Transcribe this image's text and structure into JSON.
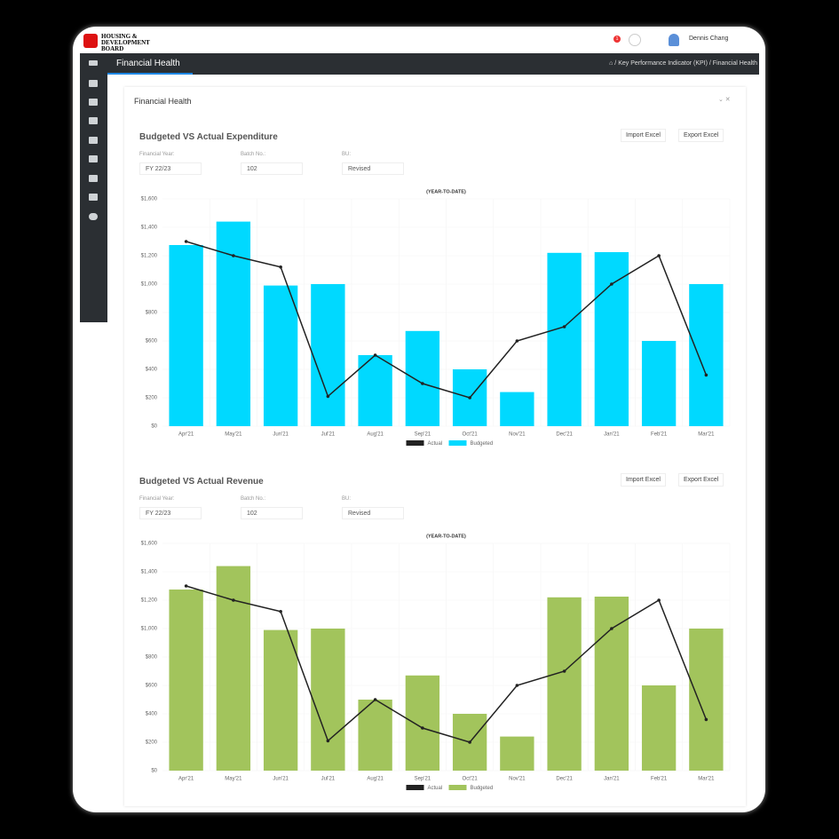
{
  "header": {
    "logo": "HOUSING & DEVELOPMENT BOARD",
    "badge": "1",
    "user": "Dennis Chang"
  },
  "nav": {
    "title": "Financial Health",
    "breadcrumb": [
      "Key Performance Indicator (KPI)",
      "Financial Health"
    ]
  },
  "panel": {
    "title": "Financial Health"
  },
  "sections": [
    {
      "import": "Import Excel",
      "export": "Export Excel",
      "filters": [
        {
          "label": "Financial Year:",
          "value": "FY 22/23"
        },
        {
          "label": "Batch No.:",
          "value": "102"
        },
        {
          "label": "BU:",
          "value": "Revised"
        }
      ]
    },
    {
      "import": "Import Excel",
      "export": "Export Excel",
      "filters": [
        {
          "label": "Financial Year:",
          "value": "FY 22/23"
        },
        {
          "label": "Batch No.:",
          "value": "102"
        },
        {
          "label": "BU:",
          "value": "Revised"
        }
      ]
    }
  ],
  "chart_data": [
    {
      "type": "bar",
      "title": "Budgeted VS Actual Expenditure",
      "subtitle": "(YEAR-TO-DATE)",
      "categories": [
        "Apr'21",
        "May'21",
        "Jun'21",
        "Jul'21",
        "Aug'21",
        "Sep'21",
        "Oct'21",
        "Nov'21",
        "Dec'21",
        "Jan'21",
        "Feb'21",
        "Mar'21"
      ],
      "series": [
        {
          "name": "Actual",
          "type": "line",
          "color": "#222222",
          "values": [
            1300,
            1200,
            1120,
            210,
            500,
            300,
            200,
            600,
            700,
            1000,
            1200,
            360
          ]
        },
        {
          "name": "Budgeted",
          "type": "bar",
          "color": "#00d9ff",
          "values": [
            1275,
            1440,
            990,
            1000,
            500,
            670,
            400,
            240,
            1220,
            1225,
            600,
            1000
          ]
        }
      ],
      "ylim": [
        0,
        1600
      ],
      "yticks": [
        {
          "value": 0,
          "label": "$0"
        },
        {
          "value": 200,
          "label": "$200"
        },
        {
          "value": 400,
          "label": "$400"
        },
        {
          "value": 600,
          "label": "$600"
        },
        {
          "value": 800,
          "label": "$800"
        },
        {
          "value": 1000,
          "label": "$1,000"
        },
        {
          "value": 1200,
          "label": "$1,200"
        },
        {
          "value": 1400,
          "label": "$1,400"
        },
        {
          "value": 1600,
          "label": "$1,600"
        }
      ],
      "grid": true,
      "legend": "bottom"
    },
    {
      "type": "bar",
      "title": "Budgeted VS Actual Revenue",
      "subtitle": "(YEAR-TO-DATE)",
      "categories": [
        "Apr'21",
        "May'21",
        "Jun'21",
        "Jul'21",
        "Aug'21",
        "Sep'21",
        "Oct'21",
        "Nov'21",
        "Dec'21",
        "Jan'21",
        "Feb'21",
        "Mar'21"
      ],
      "series": [
        {
          "name": "Actual",
          "type": "line",
          "color": "#222222",
          "values": [
            1300,
            1200,
            1120,
            210,
            500,
            300,
            200,
            600,
            700,
            1000,
            1200,
            360
          ]
        },
        {
          "name": "Budgeted",
          "type": "bar",
          "color": "#a2c45c",
          "values": [
            1275,
            1440,
            990,
            1000,
            500,
            670,
            400,
            240,
            1220,
            1225,
            600,
            1000
          ]
        }
      ],
      "ylim": [
        0,
        1600
      ],
      "yticks": [
        {
          "value": 0,
          "label": "$0"
        },
        {
          "value": 200,
          "label": "$200"
        },
        {
          "value": 400,
          "label": "$400"
        },
        {
          "value": 600,
          "label": "$600"
        },
        {
          "value": 800,
          "label": "$800"
        },
        {
          "value": 1000,
          "label": "$1,000"
        },
        {
          "value": 1200,
          "label": "$1,200"
        },
        {
          "value": 1400,
          "label": "$1,400"
        },
        {
          "value": 1600,
          "label": "$1,600"
        }
      ],
      "grid": true,
      "legend": "bottom"
    }
  ]
}
